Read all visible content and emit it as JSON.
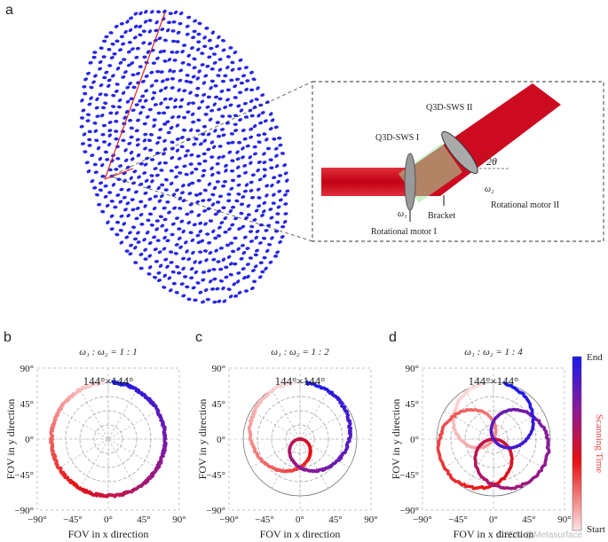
{
  "panel_a": {
    "label": "a",
    "inset_labels": {
      "sws2": "Q3D-SWS II",
      "sws1": "Q3D-SWS I",
      "angle": "2θ",
      "omega2": "ω₂",
      "motor2": "Rotational motor II",
      "omega1": "ω₁",
      "bracket": "Bracket",
      "motor1": "Rotational motor I"
    }
  },
  "panels": [
    {
      "label": "b",
      "title": "ω₁ : ω₂ = 1 : 1",
      "fov": "144°×144°",
      "x_ticks": [
        "−90°",
        "−45°",
        "0°",
        "45°",
        "90°"
      ],
      "y_ticks": [
        "90°",
        "45°",
        "0°",
        "−45°",
        "−90°"
      ],
      "x_axis": "FOV in x direction",
      "y_axis": "FOV in y direction"
    },
    {
      "label": "c",
      "title": "ω₁ : ω₂ = 1 : 2",
      "fov": "144°×144°",
      "x_ticks": [
        "−90°",
        "−45°",
        "0°",
        "45°",
        "90°"
      ],
      "y_ticks": [
        "90°",
        "45°",
        "0°",
        "−45°",
        "−90°"
      ],
      "x_axis": "FOV in x direction",
      "y_axis": "FOV in y direction"
    },
    {
      "label": "d",
      "title": "ω₁ : ω₂ = 1 : 4",
      "fov": "144°×144°",
      "x_ticks": [
        "−90°",
        "−45°",
        "0°",
        "45°",
        "90°"
      ],
      "y_ticks": [
        "90°",
        "45°",
        "0°",
        "−45°",
        "−90°"
      ],
      "x_axis": "FOV in x direction",
      "y_axis": "FOV in y direction"
    }
  ],
  "colorbar": {
    "end": "End",
    "start": "Start",
    "label": "Scanning Time"
  },
  "watermark": "CSDN @Metasurface"
}
